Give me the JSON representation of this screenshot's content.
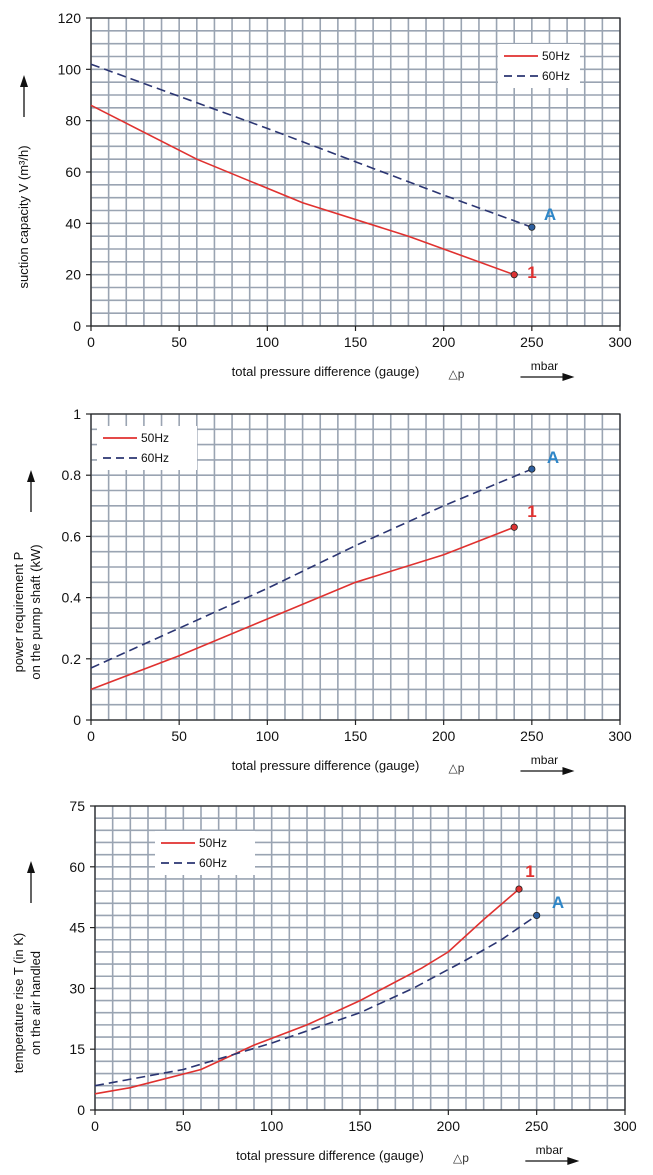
{
  "chart_data": [
    {
      "type": "line",
      "xlabel": "total pressure difference (gauge)",
      "xsymbol": "△p",
      "unit": "mbar",
      "ylabel": "suction capacity V (m³/h)",
      "xlim": [
        0,
        300
      ],
      "ylim": [
        0,
        120
      ],
      "xticks": [
        0,
        50,
        100,
        150,
        200,
        250,
        300
      ],
      "yticks": [
        0,
        20,
        40,
        60,
        80,
        100,
        120
      ],
      "x_minor": 10,
      "y_minor": 5,
      "grid": true,
      "legend": "top-right",
      "series": [
        {
          "name": "50Hz",
          "color": "#e0312f",
          "dashed": false,
          "marker_label": "1",
          "points": [
            [
              0,
              86
            ],
            [
              60,
              65
            ],
            [
              120,
              48
            ],
            [
              180,
              35
            ],
            [
              240,
              20
            ]
          ]
        },
        {
          "name": "60Hz",
          "color": "#2b3572",
          "dashed": true,
          "marker_label": "A",
          "points": [
            [
              0,
              102
            ],
            [
              100,
              77
            ],
            [
              200,
              51
            ],
            [
              250,
              38.5
            ]
          ]
        }
      ]
    },
    {
      "type": "line",
      "xlabel": "total pressure difference (gauge)",
      "xsymbol": "△p",
      "unit": "mbar",
      "ylabel": "power requirement P",
      "ylabel2": "on the pump shaft (kW)",
      "xlim": [
        0,
        300
      ],
      "ylim": [
        0,
        1
      ],
      "xticks": [
        0,
        50,
        100,
        150,
        200,
        250,
        300
      ],
      "yticks": [
        0,
        0.2,
        0.4,
        0.6,
        0.8,
        1
      ],
      "x_minor": 10,
      "y_minor": 0.05,
      "grid": true,
      "legend": "top-left",
      "series": [
        {
          "name": "50Hz",
          "color": "#e0312f",
          "dashed": false,
          "marker_label": "1",
          "points": [
            [
              0,
              0.1
            ],
            [
              50,
              0.21
            ],
            [
              100,
              0.33
            ],
            [
              150,
              0.45
            ],
            [
              200,
              0.54
            ],
            [
              240,
              0.63
            ]
          ]
        },
        {
          "name": "60Hz",
          "color": "#2b3572",
          "dashed": true,
          "marker_label": "A",
          "points": [
            [
              0,
              0.17
            ],
            [
              50,
              0.3
            ],
            [
              100,
              0.43
            ],
            [
              150,
              0.57
            ],
            [
              200,
              0.7
            ],
            [
              250,
              0.82
            ]
          ]
        }
      ]
    },
    {
      "type": "line",
      "xlabel": "total pressure difference (gauge)",
      "xsymbol": "△p",
      "unit": "mbar",
      "ylabel": "temperature rise T (in K)",
      "ylabel2": "on the air handled",
      "xlim": [
        0,
        300
      ],
      "ylim": [
        0,
        75
      ],
      "xticks": [
        0,
        50,
        100,
        150,
        200,
        250,
        300
      ],
      "yticks": [
        0,
        15,
        30,
        45,
        60,
        75
      ],
      "x_minor": 10,
      "y_minor": 3,
      "grid": true,
      "legend": "top-left",
      "series": [
        {
          "name": "50Hz",
          "color": "#e0312f",
          "dashed": false,
          "marker_label": "1",
          "points": [
            [
              0,
              4
            ],
            [
              20,
              5.5
            ],
            [
              60,
              10
            ],
            [
              90,
              16
            ],
            [
              120,
              21
            ],
            [
              150,
              27
            ],
            [
              185,
              35
            ],
            [
              200,
              39
            ],
            [
              220,
              47
            ],
            [
              240,
              54.5
            ]
          ]
        },
        {
          "name": "60Hz",
          "color": "#2b3572",
          "dashed": true,
          "marker_label": "A",
          "points": [
            [
              0,
              6
            ],
            [
              50,
              10
            ],
            [
              100,
              16.5
            ],
            [
              150,
              24
            ],
            [
              180,
              30
            ],
            [
              210,
              37
            ],
            [
              230,
              42
            ],
            [
              250,
              48
            ]
          ]
        }
      ]
    }
  ]
}
